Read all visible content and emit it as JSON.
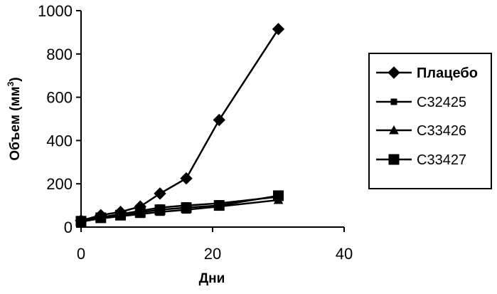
{
  "chart_data": {
    "type": "line",
    "title": "",
    "xlabel": "Дни",
    "ylabel": "Объем (мм",
    "ylabel_superscript": "3",
    "ylabel_suffix": ")",
    "xlim": [
      0,
      40
    ],
    "ylim": [
      0,
      1000
    ],
    "xticks": [
      0,
      20,
      40
    ],
    "yticks": [
      0,
      200,
      400,
      600,
      800,
      1000
    ],
    "grid": false,
    "legend_position": "right",
    "series": [
      {
        "name": "Плацебо",
        "marker": "diamond",
        "color": "#000000",
        "x": [
          0,
          3,
          6,
          9,
          12,
          16,
          21,
          30
        ],
        "y": [
          30,
          55,
          70,
          95,
          155,
          225,
          495,
          915
        ]
      },
      {
        "name": "C32425",
        "marker": "small-square",
        "color": "#000000",
        "x": [
          0,
          3,
          6,
          9,
          12,
          16,
          21,
          30
        ],
        "y": [
          28,
          45,
          60,
          75,
          90,
          100,
          110,
          140
        ]
      },
      {
        "name": "C33426",
        "marker": "triangle",
        "color": "#000000",
        "x": [
          0,
          3,
          6,
          9,
          12,
          16,
          21,
          30
        ],
        "y": [
          25,
          40,
          50,
          60,
          70,
          80,
          95,
          125
        ]
      },
      {
        "name": "C33427",
        "marker": "large-square",
        "color": "#000000",
        "x": [
          0,
          3,
          6,
          9,
          12,
          16,
          21,
          30
        ],
        "y": [
          27,
          43,
          55,
          68,
          80,
          90,
          100,
          145
        ]
      }
    ]
  }
}
